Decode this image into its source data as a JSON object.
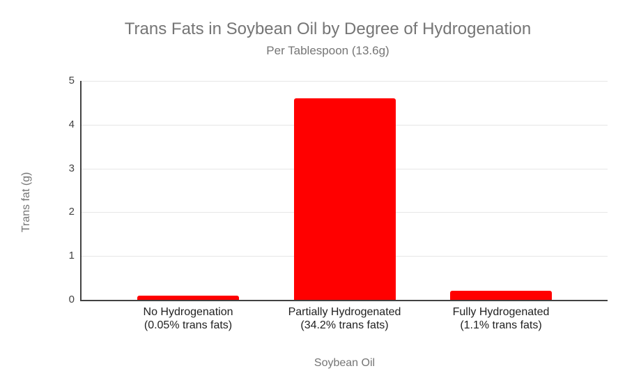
{
  "chart_data": {
    "type": "bar",
    "title": "Trans Fats in Soybean Oil by Degree of Hydrogenation",
    "subtitle": "Per Tablespoon (13.6g)",
    "xlabel": "Soybean Oil",
    "ylabel": "Trans fat (g)",
    "categories": [
      "No Hydrogenation",
      "Partially Hydrogenated",
      "Fully Hydrogenated"
    ],
    "category_sublabels": [
      "(0.05% trans fats)",
      "(34.2% trans fats)",
      "(1.1% trans fats)"
    ],
    "values": [
      0.1,
      4.6,
      0.2
    ],
    "ylim": [
      0,
      5
    ],
    "yticks": [
      0,
      1,
      2,
      3,
      4,
      5
    ],
    "grid": true,
    "legend": "none",
    "colors": {
      "bar": "#ff0000",
      "gridline": "#e6e6e6",
      "axis_line": "#424242",
      "title_text": "#757575",
      "tick_text": "#424242",
      "category_text": "#212121",
      "background": "#ffffff"
    }
  }
}
